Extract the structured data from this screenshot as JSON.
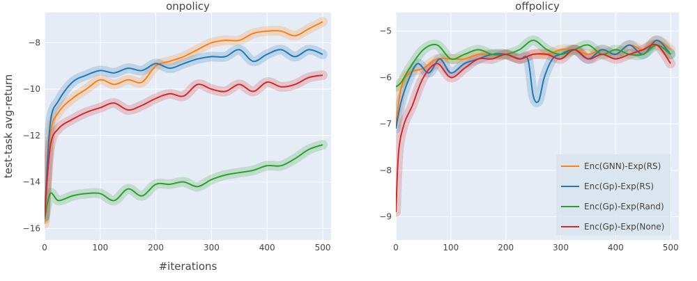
{
  "chart_data": [
    {
      "type": "line",
      "title": "onpolicy",
      "xlabel": "#iterations",
      "ylabel": "test-task avg-return",
      "xlim": [
        0,
        515
      ],
      "ylim": [
        -16.5,
        -6.7
      ],
      "x_ticks": [
        0,
        100,
        200,
        300,
        400,
        500
      ],
      "y_ticks": [
        -16,
        -14,
        -12,
        -10,
        -8
      ],
      "grid": true,
      "series": [
        {
          "name": "Enc(GNN)-Exp(RS)",
          "color": "#ff7f0e",
          "x": [
            0,
            10,
            25,
            50,
            75,
            100,
            125,
            150,
            175,
            200,
            225,
            250,
            275,
            300,
            325,
            350,
            375,
            400,
            425,
            450,
            475,
            500
          ],
          "y": [
            -15.8,
            -12.0,
            -11.0,
            -10.4,
            -10.0,
            -9.6,
            -9.8,
            -9.6,
            -9.7,
            -9.0,
            -8.8,
            -8.6,
            -8.3,
            -8.0,
            -7.9,
            -7.9,
            -7.6,
            -7.5,
            -7.5,
            -7.7,
            -7.4,
            -7.1
          ]
        },
        {
          "name": "Enc(Gp)-Exp(RS)",
          "color": "#1f77b4",
          "x": [
            0,
            10,
            25,
            50,
            75,
            100,
            125,
            150,
            175,
            200,
            225,
            250,
            275,
            300,
            325,
            350,
            375,
            400,
            425,
            450,
            475,
            500
          ],
          "y": [
            -15.5,
            -11.5,
            -10.5,
            -9.7,
            -9.4,
            -9.2,
            -9.3,
            -9.1,
            -9.2,
            -8.9,
            -9.1,
            -8.9,
            -8.7,
            -8.6,
            -8.6,
            -8.3,
            -8.8,
            -8.5,
            -8.3,
            -8.6,
            -8.3,
            -8.5
          ]
        },
        {
          "name": "Enc(Gp)-Exp(Rand)",
          "color": "#2ca02c",
          "x": [
            0,
            10,
            25,
            50,
            75,
            100,
            125,
            150,
            175,
            200,
            225,
            250,
            275,
            300,
            325,
            350,
            375,
            400,
            425,
            450,
            475,
            500
          ],
          "y": [
            -15.6,
            -14.5,
            -14.8,
            -14.6,
            -14.5,
            -14.5,
            -14.8,
            -14.3,
            -14.6,
            -14.1,
            -14.1,
            -14.0,
            -14.2,
            -13.9,
            -13.7,
            -13.6,
            -13.5,
            -13.3,
            -13.3,
            -13.0,
            -12.6,
            -12.4
          ]
        },
        {
          "name": "Enc(Gp)-Exp(None)",
          "color": "#d62728",
          "x": [
            0,
            10,
            25,
            50,
            75,
            100,
            125,
            150,
            175,
            200,
            225,
            250,
            275,
            300,
            325,
            350,
            375,
            400,
            425,
            450,
            475,
            500
          ],
          "y": [
            -15.5,
            -12.5,
            -11.7,
            -11.3,
            -11.0,
            -10.8,
            -10.6,
            -10.9,
            -10.7,
            -10.4,
            -10.2,
            -10.3,
            -9.8,
            -10.0,
            -10.1,
            -9.8,
            -10.1,
            -9.7,
            -9.9,
            -9.8,
            -9.5,
            -9.4
          ]
        }
      ]
    },
    {
      "type": "line",
      "title": "offpolicy",
      "xlabel": "",
      "ylabel": "",
      "xlim": [
        0,
        515
      ],
      "ylim": [
        -9.5,
        -4.6
      ],
      "x_ticks": [
        0,
        100,
        200,
        300,
        400,
        500
      ],
      "y_ticks": [
        -9,
        -8,
        -7,
        -6,
        -5
      ],
      "grid": true,
      "legend_position": "bottom-right",
      "series": [
        {
          "name": "Enc(GNN)-Exp(RS)",
          "color": "#ff7f0e",
          "x": [
            0,
            10,
            25,
            50,
            75,
            100,
            125,
            150,
            175,
            200,
            225,
            250,
            275,
            300,
            325,
            350,
            375,
            400,
            425,
            450,
            475,
            500
          ],
          "y": [
            -7.0,
            -6.2,
            -5.9,
            -5.8,
            -5.6,
            -5.6,
            -5.6,
            -5.5,
            -5.5,
            -5.5,
            -5.6,
            -5.5,
            -5.5,
            -5.4,
            -5.4,
            -5.5,
            -5.4,
            -5.5,
            -5.3,
            -5.4,
            -5.2,
            -5.4
          ]
        },
        {
          "name": "Enc(Gp)-Exp(RS)",
          "color": "#1f77b4",
          "x": [
            0,
            10,
            25,
            40,
            60,
            80,
            100,
            125,
            150,
            175,
            200,
            225,
            240,
            250,
            260,
            270,
            285,
            300,
            325,
            350,
            375,
            400,
            425,
            450,
            475,
            500
          ],
          "y": [
            -7.1,
            -6.5,
            -6.0,
            -5.7,
            -5.9,
            -5.6,
            -5.9,
            -5.7,
            -5.6,
            -5.5,
            -5.5,
            -5.6,
            -5.6,
            -6.4,
            -6.5,
            -6.0,
            -5.6,
            -5.5,
            -5.4,
            -5.6,
            -5.4,
            -5.5,
            -5.3,
            -5.5,
            -5.2,
            -5.5
          ]
        },
        {
          "name": "Enc(Gp)-Exp(Rand)",
          "color": "#2ca02c",
          "x": [
            0,
            10,
            25,
            50,
            75,
            100,
            125,
            150,
            175,
            200,
            225,
            250,
            275,
            300,
            325,
            350,
            375,
            400,
            425,
            450,
            475,
            500
          ],
          "y": [
            -6.2,
            -6.1,
            -5.8,
            -5.4,
            -5.3,
            -5.6,
            -5.5,
            -5.4,
            -5.5,
            -5.5,
            -5.4,
            -5.2,
            -5.4,
            -5.5,
            -5.4,
            -5.3,
            -5.5,
            -5.4,
            -5.5,
            -5.5,
            -5.3,
            -5.5
          ]
        },
        {
          "name": "Enc(Gp)-Exp(None)",
          "color": "#d62728",
          "x": [
            0,
            5,
            15,
            30,
            50,
            75,
            100,
            125,
            150,
            175,
            200,
            225,
            250,
            275,
            300,
            325,
            350,
            375,
            400,
            425,
            450,
            475,
            500
          ],
          "y": [
            -8.9,
            -7.6,
            -7.0,
            -6.6,
            -6.0,
            -5.7,
            -6.0,
            -5.8,
            -5.6,
            -5.6,
            -5.5,
            -5.6,
            -5.5,
            -5.5,
            -5.6,
            -5.4,
            -5.6,
            -5.5,
            -5.6,
            -5.5,
            -5.4,
            -5.3,
            -5.7
          ]
        }
      ]
    }
  ]
}
